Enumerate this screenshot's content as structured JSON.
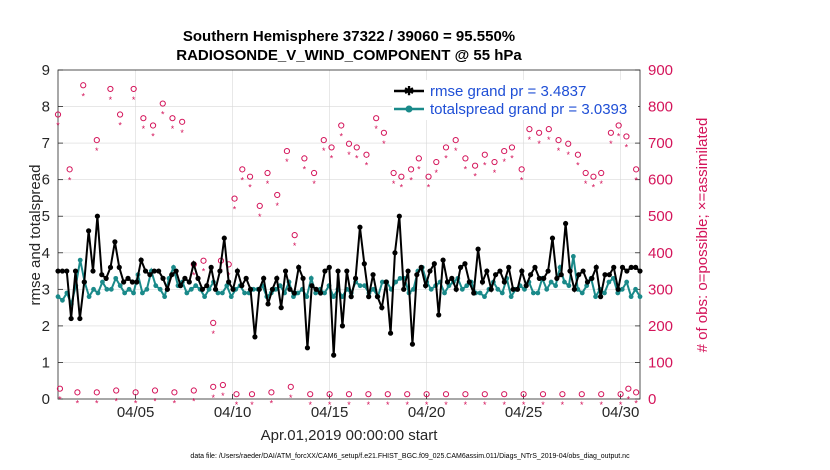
{
  "chart_data": {
    "type": "line",
    "title_line1": "Southern Hemisphere 37322 / 39060 = 95.550%",
    "title_line2": "RADIOSONDE_V_WIND_COMPONENT @ 55 hPa",
    "xlabel": "Apr.01,2019 00:00:00 start",
    "ylabel_left": "rmse and totalspread",
    "ylabel_right": "# of obs: o=possible; ×=assimilated",
    "footer": "data file: /Users/raeder/DAI/ATM_forcXX/CAM6_setup/f.e21.FHIST_BGC.f09_025.CAM6assim.011/Diags_NTrS_2019-04/obs_diag_output.nc",
    "xlim": [
      1.0,
      31.0
    ],
    "ylim_left": [
      0,
      9
    ],
    "ylim_right": [
      0,
      900
    ],
    "x_ticks": [
      {
        "value": 5,
        "label": "04/05"
      },
      {
        "value": 10,
        "label": "04/10"
      },
      {
        "value": 15,
        "label": "04/15"
      },
      {
        "value": 20,
        "label": "04/20"
      },
      {
        "value": 25,
        "label": "04/25"
      },
      {
        "value": 30,
        "label": "04/30"
      }
    ],
    "y_ticks_left": [
      "0",
      "1",
      "2",
      "3",
      "4",
      "5",
      "6",
      "7",
      "8",
      "9"
    ],
    "y_ticks_right": [
      "0",
      "100",
      "200",
      "300",
      "400",
      "500",
      "600",
      "700",
      "800",
      "900"
    ],
    "colors": {
      "rmse": "#000000",
      "spread": "#1a8a8a",
      "obs": "#d4145a",
      "legend_text": "#1f4fd6",
      "grid": "#d9d9d9"
    },
    "series": [
      {
        "name": "rmse grand pr = 3.4837",
        "axis": "left",
        "values": [
          3.5,
          3.5,
          3.5,
          2.2,
          3.5,
          2.2,
          3.2,
          4.6,
          3.5,
          5.0,
          3.4,
          3.3,
          3.6,
          4.3,
          3.6,
          3.2,
          3.3,
          3.2,
          3.2,
          3.8,
          3.5,
          3.4,
          3.5,
          3.5,
          3.3,
          3.0,
          3.4,
          3.5,
          3.1,
          3.3,
          3.2,
          3.7,
          3.3,
          3.0,
          3.1,
          3.6,
          3.0,
          3.5,
          4.4,
          3.2,
          3.0,
          3.5,
          3.1,
          3.3,
          3.0,
          1.7,
          3.0,
          3.3,
          2.6,
          3.0,
          3.3,
          2.5,
          3.5,
          3.0,
          2.9,
          3.6,
          3.3,
          1.4,
          3.1,
          3.0,
          2.9,
          3.5,
          3.6,
          1.2,
          3.5,
          2.0,
          3.5,
          2.8,
          3.3,
          4.7,
          3.7,
          2.8,
          3.4,
          2.8,
          2.5,
          3.2,
          1.8,
          4.0,
          5.0,
          3.0,
          3.5,
          1.5,
          3.4,
          3.6,
          3.1,
          3.5,
          3.7,
          2.3,
          3.8,
          3.2,
          3.3,
          3.0,
          3.6,
          3.7,
          3.2,
          2.9,
          4.1,
          3.2,
          3.5,
          3.0,
          3.4,
          3.5,
          3.2,
          3.6,
          3.0,
          3.0,
          3.5,
          3.1,
          3.4,
          3.6,
          3.3,
          3.3,
          3.5,
          4.4,
          3.3,
          3.4,
          4.8,
          3.5,
          3.0,
          3.4,
          3.5,
          3.2,
          3.3,
          3.6,
          2.8,
          3.4,
          3.4,
          3.6,
          3.0,
          3.6,
          3.5,
          3.6,
          3.6,
          3.5
        ]
      },
      {
        "name": "totalspread grand pr = 3.0393",
        "axis": "left",
        "values": [
          2.8,
          2.7,
          2.9,
          2.6,
          3.1,
          3.8,
          3.2,
          2.8,
          3.0,
          2.9,
          3.2,
          3.0,
          3.0,
          3.3,
          3.1,
          2.9,
          3.0,
          2.9,
          3.4,
          2.9,
          3.0,
          3.5,
          3.1,
          3.0,
          2.8,
          3.3,
          3.6,
          3.1,
          3.2,
          2.9,
          3.0,
          3.1,
          3.0,
          2.8,
          3.0,
          3.2,
          2.9,
          2.9,
          3.1,
          2.8,
          3.0,
          3.1,
          2.9,
          2.9,
          3.0,
          3.0,
          3.1,
          2.8,
          2.9,
          3.0,
          3.1,
          2.9,
          3.2,
          2.8,
          2.9,
          3.0,
          2.8,
          3.3,
          2.9,
          3.0,
          2.9,
          3.1,
          2.8,
          3.0,
          2.8,
          3.0,
          2.9,
          3.2,
          3.1,
          3.1,
          2.9,
          3.0,
          2.8,
          3.2,
          3.2,
          3.0,
          3.2,
          3.3,
          3.3,
          2.9,
          3.0,
          3.5,
          3.6,
          3.2,
          3.0,
          3.1,
          3.2,
          2.9,
          3.1,
          3.2,
          3.3,
          3.0,
          3.1,
          3.2,
          2.9,
          2.9,
          2.8,
          3.0,
          3.2,
          3.0,
          2.9,
          3.3,
          2.8,
          3.0,
          3.1,
          3.0,
          3.2,
          2.9,
          2.9,
          3.3,
          3.0,
          3.2,
          3.1,
          3.6,
          3.2,
          3.1,
          3.9,
          3.0,
          2.9,
          3.1,
          3.3,
          2.8,
          3.0,
          2.9,
          3.2,
          3.3,
          2.9,
          3.0,
          3.2,
          2.8,
          3.0,
          2.8
        ]
      }
    ],
    "obs_possible_high": {
      "axis": "right",
      "points": [
        [
          1.0,
          770
        ],
        [
          1.6,
          620
        ],
        [
          2.3,
          850
        ],
        [
          3.0,
          700
        ],
        [
          3.7,
          840
        ],
        [
          4.2,
          770
        ],
        [
          4.9,
          840
        ],
        [
          5.4,
          760
        ],
        [
          5.9,
          740
        ],
        [
          6.4,
          800
        ],
        [
          6.9,
          760
        ],
        [
          7.4,
          750
        ],
        [
          8.0,
          360
        ],
        [
          8.5,
          370
        ],
        [
          9.0,
          200
        ],
        [
          9.4,
          370
        ],
        [
          9.8,
          360
        ],
        [
          10.1,
          540
        ],
        [
          10.5,
          620
        ],
        [
          10.9,
          600
        ],
        [
          11.4,
          520
        ],
        [
          11.8,
          610
        ],
        [
          12.3,
          550
        ],
        [
          12.8,
          670
        ],
        [
          13.2,
          440
        ],
        [
          13.7,
          650
        ],
        [
          14.2,
          610
        ],
        [
          14.7,
          700
        ],
        [
          15.1,
          680
        ],
        [
          15.6,
          740
        ],
        [
          16.0,
          690
        ],
        [
          16.4,
          680
        ],
        [
          16.9,
          660
        ],
        [
          17.4,
          760
        ],
        [
          17.8,
          720
        ],
        [
          18.3,
          610
        ],
        [
          18.7,
          600
        ],
        [
          19.2,
          620
        ],
        [
          19.6,
          650
        ],
        [
          20.1,
          600
        ],
        [
          20.5,
          640
        ],
        [
          21.0,
          680
        ],
        [
          21.5,
          700
        ],
        [
          22.0,
          650
        ],
        [
          22.5,
          630
        ],
        [
          23.0,
          660
        ],
        [
          23.5,
          640
        ],
        [
          24.0,
          670
        ],
        [
          24.4,
          680
        ],
        [
          24.9,
          620
        ],
        [
          25.3,
          730
        ],
        [
          25.8,
          720
        ],
        [
          26.3,
          730
        ],
        [
          26.8,
          700
        ],
        [
          27.3,
          690
        ],
        [
          27.8,
          660
        ],
        [
          28.2,
          610
        ],
        [
          28.6,
          600
        ],
        [
          29.0,
          610
        ],
        [
          29.5,
          720
        ],
        [
          29.9,
          740
        ],
        [
          30.3,
          710
        ],
        [
          30.8,
          620
        ]
      ]
    },
    "obs_possible_low": {
      "axis": "right",
      "points": [
        [
          1.1,
          20
        ],
        [
          2.0,
          10
        ],
        [
          3.0,
          10
        ],
        [
          4.0,
          15
        ],
        [
          5.0,
          10
        ],
        [
          6.0,
          15
        ],
        [
          7.0,
          10
        ],
        [
          8.0,
          15
        ],
        [
          9.0,
          25
        ],
        [
          9.5,
          30
        ],
        [
          10.2,
          5
        ],
        [
          11.0,
          5
        ],
        [
          12.0,
          10
        ],
        [
          13.0,
          25
        ],
        [
          14.0,
          5
        ],
        [
          15.0,
          5
        ],
        [
          16.0,
          5
        ],
        [
          17.0,
          5
        ],
        [
          18.0,
          5
        ],
        [
          19.0,
          5
        ],
        [
          20.0,
          5
        ],
        [
          21.0,
          5
        ],
        [
          22.0,
          5
        ],
        [
          23.0,
          5
        ],
        [
          24.0,
          5
        ],
        [
          25.0,
          5
        ],
        [
          26.0,
          5
        ],
        [
          27.0,
          5
        ],
        [
          28.0,
          5
        ],
        [
          29.0,
          5
        ],
        [
          30.0,
          5
        ],
        [
          30.4,
          20
        ],
        [
          30.8,
          10
        ]
      ]
    }
  }
}
